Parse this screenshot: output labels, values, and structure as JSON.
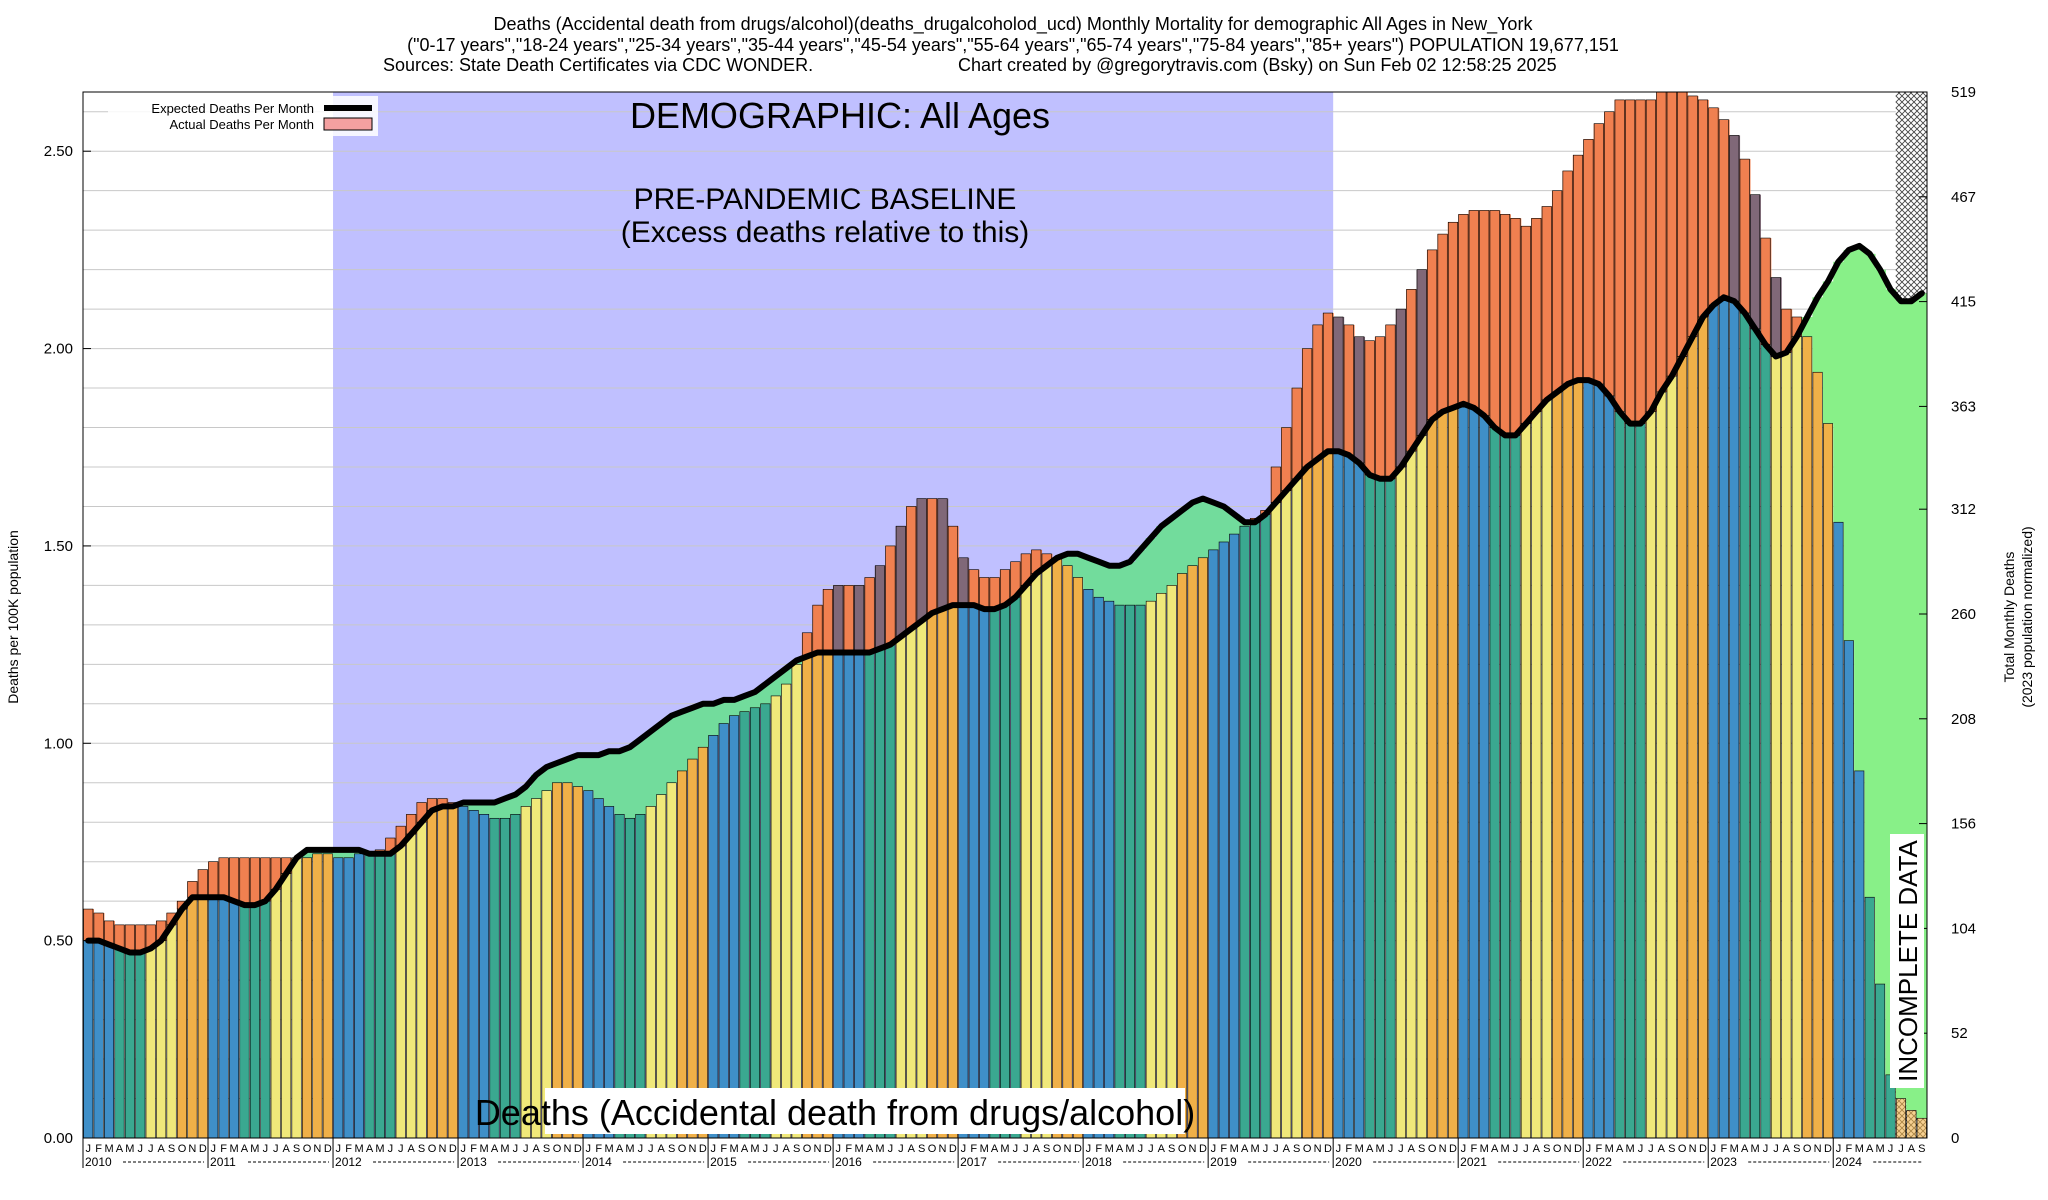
{
  "chart_data": {
    "type": "bar",
    "title_lines": [
      "Deaths (Accidental death from drugs/alcohol)(deaths_drugalcoholod_ucd) Monthly Mortality for demographic All Ages in New_York",
      "(\"0-17 years\",\"18-24 years\",\"25-34 years\",\"35-44 years\",\"45-54 years\",\"55-64 years\",\"65-74 years\",\"75-84 years\",\"85+ years\") POPULATION 19,677,151",
      "Sources: State Death Certificates via CDC WONDER.",
      "Chart created by @gregorytravis.com (Bsky) on Sun Feb 02 12:58:25 2025"
    ],
    "ylabel": "Deaths per 100K population",
    "ylabel_right_lines": [
      "Total Monthly Deaths",
      "(2023 population normalized)"
    ],
    "ylim": [
      0,
      2.65
    ],
    "y_ticks": [
      "0.00",
      "0.50",
      "1.00",
      "1.50",
      "2.00",
      "2.50"
    ],
    "y_tick_values": [
      0,
      0.5,
      1.0,
      1.5,
      2.0,
      2.5
    ],
    "y_right_ticks": [
      "0",
      "52",
      "104",
      "156",
      "208",
      "260",
      "312",
      "363",
      "415",
      "467",
      "519"
    ],
    "y_right_tick_values": [
      0,
      52,
      104,
      156,
      208,
      260,
      312,
      363,
      415,
      467,
      519
    ],
    "y_right_max": 519,
    "month_letters": [
      "J",
      "F",
      "M",
      "A",
      "M",
      "J",
      "J",
      "A",
      "S",
      "O",
      "N",
      "D"
    ],
    "years": [
      "2010",
      "2011",
      "2012",
      "2013",
      "2014",
      "2015",
      "2016",
      "2017",
      "2018",
      "2019",
      "2020",
      "2021",
      "2022",
      "2023",
      "2024"
    ],
    "annotations": {
      "demographic": "DEMOGRAPHIC: All Ages",
      "baseline_line1": "PRE-PANDEMIC BASELINE",
      "baseline_line2": "(Excess deaths relative to this)",
      "bottom_label": "Deaths (Accidental death from drugs/alcohol)",
      "incomplete": "INCOMPLETE DATA"
    },
    "legend": [
      {
        "label": "Expected Deaths Per Month",
        "kind": "line",
        "color": "#000000"
      },
      {
        "label": "Actual Deaths Per Month",
        "kind": "box",
        "color": "#f4a0a0"
      }
    ],
    "baseline_period": {
      "start_index": 24,
      "end_index": 120,
      "color": "#c0c0ff"
    },
    "incomplete_start_index": 174,
    "colors": {
      "baseline_fill": "#c0c0ff",
      "below_expected_fill": "#72dc9c",
      "above_expected_fill": "#f08050",
      "above_expected_dark": "#806878",
      "recent_fill": "#88f088",
      "bar_winter": "#3f8fc8",
      "bar_spring": "#3aa890",
      "bar_summer": "#f0e87a",
      "bar_fall": "#f0b048"
    },
    "series": [
      {
        "name": "Actual Deaths Per Month",
        "values": [
          0.58,
          0.57,
          0.55,
          0.54,
          0.54,
          0.54,
          0.54,
          0.55,
          0.57,
          0.6,
          0.65,
          0.68,
          0.7,
          0.71,
          0.71,
          0.71,
          0.71,
          0.71,
          0.71,
          0.71,
          0.71,
          0.71,
          0.72,
          0.72,
          0.71,
          0.71,
          0.72,
          0.72,
          0.73,
          0.76,
          0.79,
          0.82,
          0.85,
          0.86,
          0.86,
          0.85,
          0.84,
          0.83,
          0.82,
          0.81,
          0.81,
          0.82,
          0.84,
          0.86,
          0.88,
          0.9,
          0.9,
          0.89,
          0.88,
          0.86,
          0.84,
          0.82,
          0.81,
          0.82,
          0.84,
          0.87,
          0.9,
          0.93,
          0.96,
          0.99,
          1.02,
          1.05,
          1.07,
          1.08,
          1.09,
          1.1,
          1.12,
          1.15,
          1.2,
          1.28,
          1.35,
          1.39,
          1.4,
          1.4,
          1.4,
          1.42,
          1.45,
          1.5,
          1.55,
          1.6,
          1.62,
          1.62,
          1.62,
          1.55,
          1.47,
          1.44,
          1.42,
          1.42,
          1.44,
          1.46,
          1.48,
          1.49,
          1.48,
          1.47,
          1.45,
          1.42,
          1.39,
          1.37,
          1.36,
          1.35,
          1.35,
          1.35,
          1.36,
          1.38,
          1.4,
          1.43,
          1.45,
          1.47,
          1.49,
          1.51,
          1.53,
          1.55,
          1.57,
          1.59,
          1.7,
          1.8,
          1.9,
          2.0,
          2.06,
          2.09,
          2.08,
          2.06,
          2.03,
          2.02,
          2.03,
          2.06,
          2.1,
          2.15,
          2.2,
          2.25,
          2.29,
          2.32,
          2.34,
          2.35,
          2.35,
          2.35,
          2.34,
          2.33,
          2.31,
          2.33,
          2.36,
          2.4,
          2.45,
          2.49,
          2.53,
          2.57,
          2.6,
          2.63,
          2.63,
          2.63,
          2.63,
          2.65,
          2.65,
          2.65,
          2.64,
          2.63,
          2.61,
          2.58,
          2.54,
          2.48,
          2.39,
          2.28,
          2.18,
          2.1,
          2.08,
          2.03,
          1.94,
          1.81,
          1.56,
          1.26,
          0.93,
          0.61,
          0.39,
          0.16,
          0.1,
          0.07,
          0.05
        ]
      },
      {
        "name": "Expected Deaths Per Month",
        "values": [
          0.5,
          0.5,
          0.49,
          0.48,
          0.47,
          0.47,
          0.48,
          0.5,
          0.54,
          0.58,
          0.61,
          0.61,
          0.61,
          0.61,
          0.6,
          0.59,
          0.59,
          0.6,
          0.63,
          0.67,
          0.71,
          0.73,
          0.73,
          0.73,
          0.73,
          0.73,
          0.73,
          0.72,
          0.72,
          0.72,
          0.74,
          0.77,
          0.8,
          0.83,
          0.84,
          0.84,
          0.85,
          0.85,
          0.85,
          0.85,
          0.86,
          0.87,
          0.89,
          0.92,
          0.94,
          0.95,
          0.96,
          0.97,
          0.97,
          0.97,
          0.98,
          0.98,
          0.99,
          1.01,
          1.03,
          1.05,
          1.07,
          1.08,
          1.09,
          1.1,
          1.1,
          1.11,
          1.11,
          1.12,
          1.13,
          1.15,
          1.17,
          1.19,
          1.21,
          1.22,
          1.23,
          1.23,
          1.23,
          1.23,
          1.23,
          1.23,
          1.24,
          1.25,
          1.27,
          1.29,
          1.31,
          1.33,
          1.34,
          1.35,
          1.35,
          1.35,
          1.34,
          1.34,
          1.35,
          1.37,
          1.4,
          1.43,
          1.45,
          1.47,
          1.48,
          1.48,
          1.47,
          1.46,
          1.45,
          1.45,
          1.46,
          1.49,
          1.52,
          1.55,
          1.57,
          1.59,
          1.61,
          1.62,
          1.61,
          1.6,
          1.58,
          1.56,
          1.56,
          1.58,
          1.61,
          1.64,
          1.67,
          1.7,
          1.72,
          1.74,
          1.74,
          1.73,
          1.71,
          1.68,
          1.67,
          1.67,
          1.7,
          1.74,
          1.78,
          1.82,
          1.84,
          1.85,
          1.86,
          1.85,
          1.83,
          1.8,
          1.78,
          1.78,
          1.81,
          1.84,
          1.87,
          1.89,
          1.91,
          1.92,
          1.92,
          1.91,
          1.88,
          1.84,
          1.81,
          1.81,
          1.84,
          1.89,
          1.93,
          1.98,
          2.03,
          2.08,
          2.11,
          2.13,
          2.12,
          2.09,
          2.05,
          2.01,
          1.98,
          1.99,
          2.03,
          2.08,
          2.13,
          2.17,
          2.22,
          2.25,
          2.26,
          2.24,
          2.2,
          2.15,
          2.12,
          2.12,
          2.14
        ]
      }
    ]
  }
}
